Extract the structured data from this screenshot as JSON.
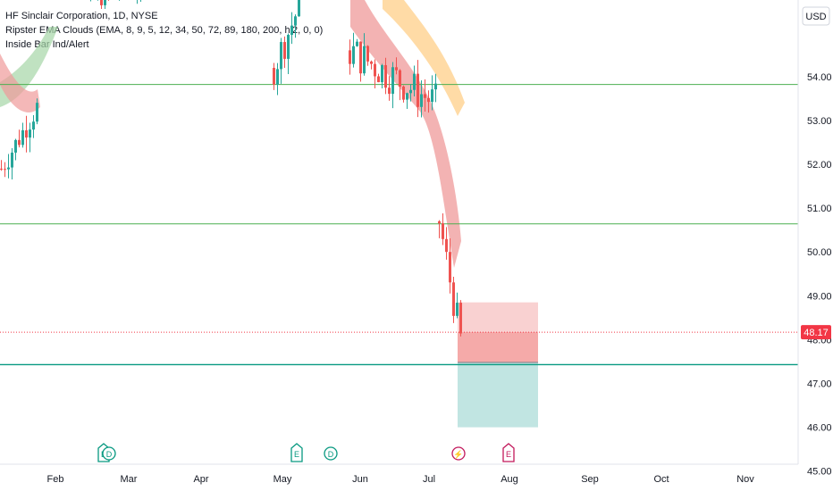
{
  "legend": {
    "symbol_line": "HF Sinclair Corporation, 1D, NYSE",
    "indicator_1": "Ripster EMA Clouds (EMA, 8, 9, 5, 12, 34, 50, 72, 89, 180, 200, hl2, 0, 0)",
    "indicator_2": "Inside Bar Ind/Alert"
  },
  "colors": {
    "up": "#26a69a",
    "down": "#ef5350",
    "level_line": "#4caf50",
    "price_line": "#089981",
    "last_price_badge": "#f23645",
    "cloud_red": "#ef9a9a",
    "cloud_orange": "#ffcc80",
    "cloud_green": "#a5d6a7",
    "stop_zone": "#f7c6c5",
    "target_zone": "#b2dfdb"
  },
  "chart_data": {
    "type": "candlestick",
    "currency": "USD",
    "ylim": [
      44.8,
      55.3
    ],
    "y_ticks": [
      "54.00",
      "53.00",
      "52.00",
      "51.00",
      "50.00",
      "49.00",
      "48.00",
      "47.00",
      "46.00",
      "45.00"
    ],
    "x_labels": [
      "Feb",
      "Mar",
      "Apr",
      "May",
      "Jun",
      "Jul",
      "Aug",
      "Sep",
      "Oct",
      "Nov"
    ],
    "last_price": "48.17",
    "horizontal_levels": [
      53.82,
      50.64,
      47.43
    ],
    "dotted_price_level": 48.17,
    "position": {
      "entry": 47.48,
      "stop": 48.85,
      "target": 46.0,
      "current": 48.17
    },
    "events": [
      {
        "month": "Feb",
        "labels": [
          "E",
          "D"
        ]
      },
      {
        "month": "May",
        "labels": [
          "E",
          "D"
        ]
      },
      {
        "month": "Jul",
        "labels": [
          "⚡"
        ]
      },
      {
        "month": "Aug",
        "labels": [
          "E"
        ]
      }
    ],
    "segments": [
      {
        "name": "",
        "start": 0,
        "end": 40,
        "from": 51.9,
        "to": 53.3,
        "amp": 0.6
      },
      {
        "name": "",
        "start": 100,
        "end": 160,
        "from": 55.8,
        "to": 56.2,
        "amp": 0.6
      },
      {
        "name": "",
        "start": 305,
        "end": 335,
        "from": 54.2,
        "to": 55.6,
        "amp": 0.8
      },
      {
        "name": "",
        "start": 390,
        "end": 488,
        "from": 54.6,
        "to": 53.4,
        "amp": 0.9
      },
      {
        "name": "",
        "start": 490,
        "end": 514,
        "from": 50.7,
        "to": 48.0,
        "amp": 0.8
      }
    ]
  }
}
